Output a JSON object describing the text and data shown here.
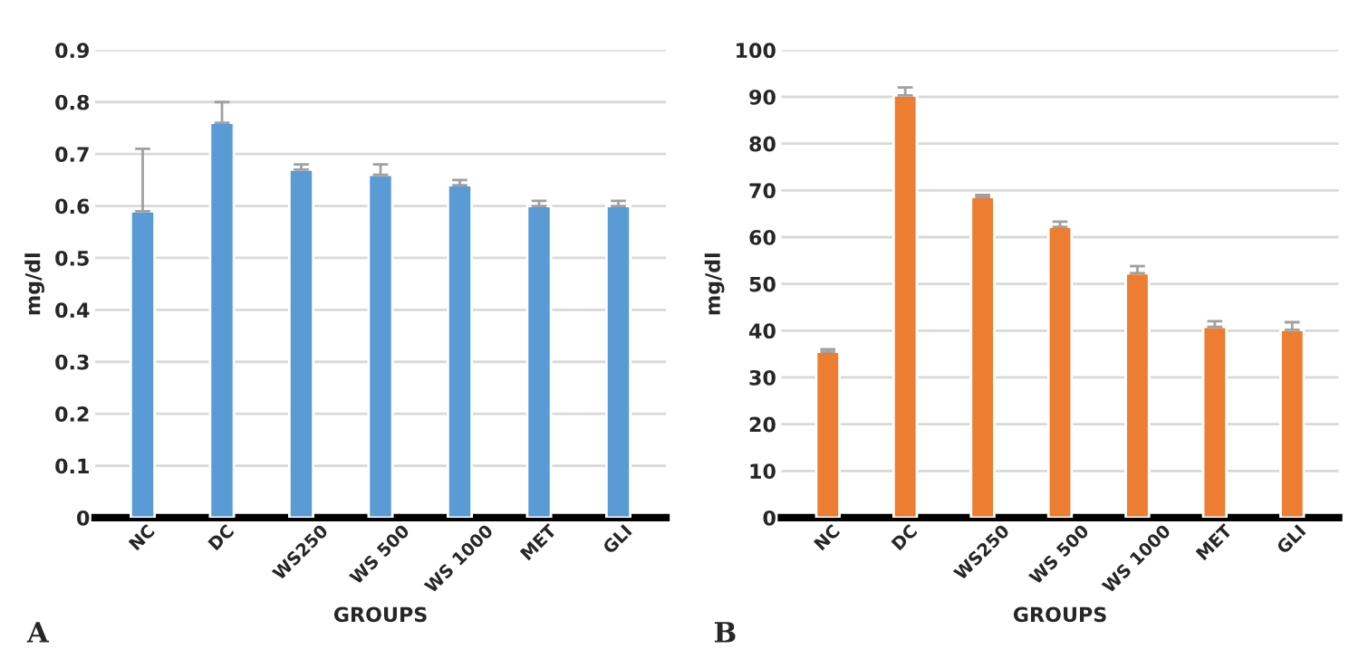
{
  "chart_data": [
    {
      "type": "bar",
      "categories": [
        "NC",
        "DC",
        "WS250",
        "WS 500",
        "WS 1000",
        "MET",
        "GLI"
      ],
      "xlabel": "GROUPS",
      "ylabel": "mg/dl",
      "annotations": [
        "A"
      ],
      "series": [
        {
          "color": "#5b9bd5",
          "values": [
            0.59,
            0.76,
            0.67,
            0.66,
            0.64,
            0.6,
            0.6
          ],
          "errors": [
            [
              0.59,
              0.71
            ],
            [
              0.76,
              0.8
            ],
            [
              0.67,
              0.68
            ],
            [
              0.66,
              0.68
            ],
            [
              0.64,
              0.65
            ],
            [
              0.6,
              0.61
            ],
            [
              0.6,
              0.61
            ]
          ]
        }
      ],
      "ylim": [
        0,
        0.9
      ],
      "yticks": [
        0,
        0.1,
        0.2,
        0.3,
        0.4,
        0.5,
        0.6,
        0.7,
        0.8,
        0.9
      ],
      "grid": "y"
    },
    {
      "type": "bar",
      "categories": [
        "NC",
        "DC",
        "WS250",
        "WS 500",
        "WS 1000",
        "MET",
        "GLI"
      ],
      "xlabel": "GROUPS",
      "ylabel": "mg/dl",
      "annotations": [
        "B"
      ],
      "series": [
        {
          "color": "#ed7d31",
          "values": [
            35.5,
            90.3,
            68.6,
            62.2,
            52.3,
            40.8,
            40.2
          ],
          "errors": [
            [
              35.5,
              36
            ],
            [
              90.3,
              92
            ],
            [
              68.6,
              69
            ],
            [
              62.2,
              63.3
            ],
            [
              52.3,
              53.8
            ],
            [
              40.8,
              42
            ],
            [
              40.2,
              41.8
            ]
          ]
        }
      ],
      "ylim": [
        0,
        100
      ],
      "yticks": [
        0,
        10,
        20,
        30,
        40,
        50,
        60,
        70,
        80,
        90,
        100
      ],
      "grid": "y"
    }
  ]
}
